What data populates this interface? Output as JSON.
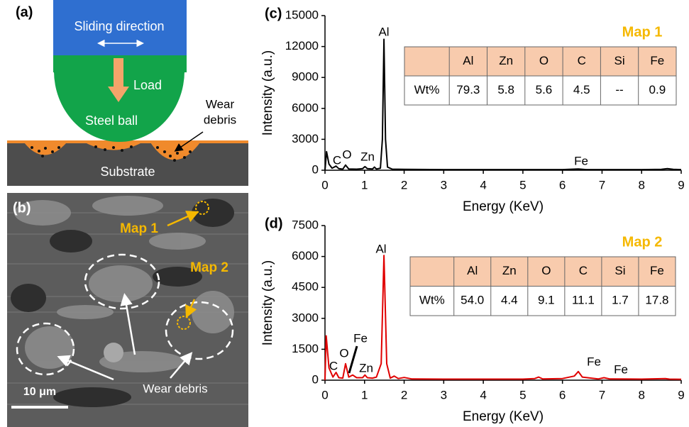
{
  "panel_a": {
    "label": "(a)",
    "sliding": "Sliding direction",
    "load": "Load",
    "ball": "Steel ball",
    "debris": [
      "Wear",
      "debris"
    ],
    "substrate": "Substrate"
  },
  "panel_b": {
    "label": "(b)",
    "map1": "Map 1",
    "map2": "Map 2",
    "debris": "Wear debris",
    "scale": "10 μm"
  },
  "chart_data": [
    {
      "type": "line",
      "panel_label": "(c)",
      "title": "Map 1",
      "xlabel": "Energy (KeV)",
      "ylabel": "Intensity (a.u.)",
      "color": "#000000",
      "x": [
        0,
        0.04,
        0.1,
        0.18,
        0.28,
        0.35,
        0.45,
        0.52,
        0.6,
        0.8,
        0.95,
        1.01,
        1.07,
        1.2,
        1.25,
        1.3,
        1.4,
        1.45,
        1.49,
        1.53,
        1.58,
        1.7,
        2,
        3,
        4,
        5,
        6,
        6.4,
        6.6,
        7,
        8,
        8.5,
        8.65,
        8.8,
        9
      ],
      "values": [
        0,
        1800,
        600,
        200,
        400,
        150,
        100,
        500,
        120,
        100,
        150,
        350,
        150,
        120,
        300,
        120,
        200,
        3000,
        12700,
        3000,
        300,
        100,
        80,
        60,
        60,
        60,
        60,
        120,
        60,
        60,
        60,
        80,
        150,
        80,
        60
      ],
      "xlim": [
        0,
        9
      ],
      "xticks": [
        0,
        1,
        2,
        3,
        4,
        5,
        6,
        7,
        8,
        9
      ],
      "ylim": [
        0,
        15000
      ],
      "yticks": [
        0,
        3000,
        6000,
        9000,
        12000,
        15000
      ],
      "annotations": [
        "Al",
        "C",
        "O",
        "Zn",
        "Fe"
      ],
      "table": {
        "header": [
          "Al",
          "Zn",
          "O",
          "C",
          "Si",
          "Fe"
        ],
        "row_label": "Wt%",
        "row": [
          "79.3",
          "5.8",
          "5.6",
          "4.5",
          "--",
          "0.9"
        ]
      }
    },
    {
      "type": "line",
      "panel_label": "(d)",
      "title": "Map 2",
      "xlabel": "Energy (KeV)",
      "ylabel": "Intensity (a.u.)",
      "color": "#e00000",
      "x": [
        0,
        0.03,
        0.1,
        0.2,
        0.28,
        0.35,
        0.45,
        0.52,
        0.6,
        0.7,
        0.8,
        0.95,
        1.01,
        1.07,
        1.2,
        1.3,
        1.42,
        1.49,
        1.56,
        1.65,
        1.75,
        1.85,
        2,
        2.2,
        3,
        4,
        5,
        5.3,
        5.4,
        5.5,
        6,
        6.3,
        6.4,
        6.5,
        6.9,
        7.05,
        7.2,
        8,
        8.6,
        8.7,
        9
      ],
      "values": [
        0,
        2150,
        600,
        150,
        380,
        120,
        100,
        800,
        150,
        250,
        120,
        120,
        250,
        120,
        100,
        150,
        800,
        6050,
        800,
        100,
        200,
        80,
        130,
        60,
        50,
        50,
        50,
        80,
        150,
        60,
        80,
        200,
        420,
        150,
        60,
        120,
        60,
        50,
        80,
        50,
        40
      ],
      "xlim": [
        0,
        9
      ],
      "xticks": [
        0,
        1,
        2,
        3,
        4,
        5,
        6,
        7,
        8,
        9
      ],
      "ylim": [
        0,
        7500
      ],
      "yticks": [
        0,
        1500,
        3000,
        4500,
        6000,
        7500
      ],
      "annotations": [
        "Al",
        "C",
        "O",
        "Fe",
        "Zn",
        "Fe",
        "Fe"
      ],
      "table": {
        "header": [
          "Al",
          "Zn",
          "O",
          "C",
          "Si",
          "Fe"
        ],
        "row_label": "Wt%",
        "row": [
          "54.0",
          "4.4",
          "9.1",
          "11.1",
          "1.7",
          "17.8"
        ]
      }
    }
  ]
}
